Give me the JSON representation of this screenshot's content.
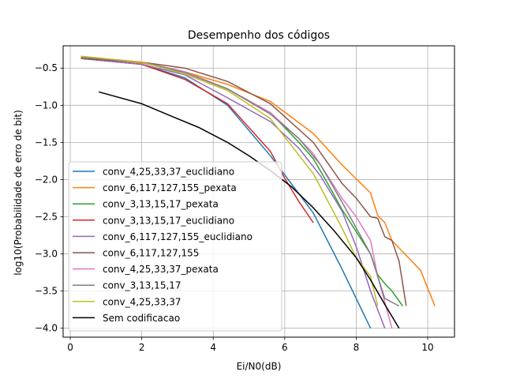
{
  "chart_data": {
    "type": "line",
    "title": "Desempenho dos códigos",
    "xlabel": "Ei/N0(dB)",
    "ylabel": "log10(Probabilidade de erro de bit)",
    "xlim": [
      -0.2,
      10.75
    ],
    "ylim": [
      -4.12,
      -0.2
    ],
    "xticks": [
      0,
      2,
      4,
      6,
      8,
      10
    ],
    "xtick_labels": [
      "0",
      "2",
      "4",
      "6",
      "8",
      "10"
    ],
    "yticks": [
      -4.0,
      -3.5,
      -3.0,
      -2.5,
      -2.0,
      -1.5,
      -1.0,
      -0.5
    ],
    "ytick_labels": [
      "−4.0",
      "−3.5",
      "−3.0",
      "−2.5",
      "−2.0",
      "−1.5",
      "−1.0",
      "−0.5"
    ],
    "grid": true,
    "legend_position": "lower-left",
    "series": [
      {
        "name": "conv_4,25,33,37_euclidiano",
        "color": "#1f77b4",
        "x": [
          0.3,
          2.0,
          3.2,
          4.4,
          5.6,
          6.8,
          7.6,
          8.4
        ],
        "y": [
          -0.37,
          -0.45,
          -0.63,
          -1.0,
          -1.68,
          -2.45,
          -3.2,
          -4.0
        ]
      },
      {
        "name": "conv_6,117,127,155_pexata",
        "color": "#ff7f0e",
        "x": [
          0.3,
          2.0,
          3.2,
          4.4,
          5.6,
          6.8,
          7.6,
          8.4,
          8.6,
          8.8,
          9.0,
          9.4,
          9.8,
          10.2
        ],
        "y": [
          -0.35,
          -0.43,
          -0.55,
          -0.72,
          -0.95,
          -1.38,
          -1.8,
          -2.18,
          -2.48,
          -2.58,
          -2.82,
          -3.02,
          -3.22,
          -3.7
        ]
      },
      {
        "name": "conv_3,13,15,17_pexata",
        "color": "#2ca02c",
        "x": [
          0.3,
          2.0,
          3.2,
          4.4,
          5.6,
          6.4,
          6.8,
          7.2,
          7.6,
          8.0,
          8.4,
          8.6,
          8.8,
          9.0,
          9.3
        ],
        "y": [
          -0.35,
          -0.42,
          -0.55,
          -0.78,
          -1.1,
          -1.5,
          -1.72,
          -2.05,
          -2.4,
          -2.7,
          -3.0,
          -3.28,
          -3.4,
          -3.5,
          -3.7
        ]
      },
      {
        "name": "conv_3,13,15,17_euclidiano",
        "color": "#d62728",
        "x": [
          0.3,
          2.0,
          3.2,
          4.4,
          5.6,
          6.0,
          6.4,
          6.8
        ],
        "y": [
          -0.37,
          -0.45,
          -0.65,
          -0.98,
          -1.62,
          -1.98,
          -2.3,
          -2.58
        ]
      },
      {
        "name": "conv_6,117,127,155_euclidiano",
        "color": "#9467bd",
        "x": [
          0.3,
          2.0,
          3.2,
          4.4,
          5.6,
          6.4,
          7.0,
          7.6,
          8.0,
          8.4,
          8.8
        ],
        "y": [
          -0.37,
          -0.45,
          -0.59,
          -0.9,
          -1.22,
          -1.58,
          -1.95,
          -2.42,
          -2.9,
          -3.5,
          -4.0
        ]
      },
      {
        "name": "conv_6,117,127,155",
        "color": "#8c564b",
        "x": [
          0.3,
          2.0,
          3.2,
          4.4,
          5.6,
          6.8,
          7.6,
          8.0,
          8.4,
          8.6,
          8.8,
          9.0,
          9.2,
          9.4
        ],
        "y": [
          -0.37,
          -0.42,
          -0.5,
          -0.68,
          -0.98,
          -1.5,
          -2.05,
          -2.25,
          -2.5,
          -2.52,
          -2.77,
          -2.82,
          -3.1,
          -3.7
        ]
      },
      {
        "name": "conv_4,25,33,37_pexata",
        "color": "#e377c2",
        "x": [
          0.3,
          2.0,
          3.2,
          4.4,
          5.6,
          6.4,
          6.8,
          7.6,
          8.0,
          8.4,
          8.6,
          9.0
        ],
        "y": [
          -0.35,
          -0.42,
          -0.55,
          -0.78,
          -1.1,
          -1.45,
          -1.65,
          -2.25,
          -2.5,
          -2.82,
          -3.3,
          -4.0
        ]
      },
      {
        "name": "conv_3,13,15,17",
        "color": "#7f7f7f",
        "x": [
          0.3,
          2.0,
          3.2,
          4.4,
          5.6,
          6.4,
          7.0,
          7.6,
          8.0,
          8.4,
          8.8,
          9.2
        ],
        "y": [
          -0.35,
          -0.42,
          -0.56,
          -0.78,
          -1.12,
          -1.45,
          -1.8,
          -2.3,
          -2.65,
          -3.0,
          -3.6,
          -3.7
        ]
      },
      {
        "name": "conv_4,25,33,37",
        "color": "#bcbd22",
        "x": [
          0.3,
          2.0,
          3.2,
          4.4,
          5.6,
          6.8,
          7.6,
          8.0,
          8.4,
          8.6
        ],
        "y": [
          -0.34,
          -0.42,
          -0.58,
          -0.8,
          -1.18,
          -1.92,
          -2.65,
          -3.05,
          -3.3,
          -3.7
        ]
      },
      {
        "name": "Sem codificacao",
        "color": "#000000",
        "x": [
          0.8,
          2.0,
          3.0,
          3.6,
          4.4,
          5.0,
          5.6,
          6.2,
          6.8,
          7.4,
          8.0,
          8.4,
          8.8,
          9.2
        ],
        "y": [
          -0.82,
          -0.98,
          -1.18,
          -1.3,
          -1.5,
          -1.68,
          -1.88,
          -2.1,
          -2.38,
          -2.7,
          -3.05,
          -3.35,
          -3.68,
          -4.0
        ]
      }
    ]
  }
}
